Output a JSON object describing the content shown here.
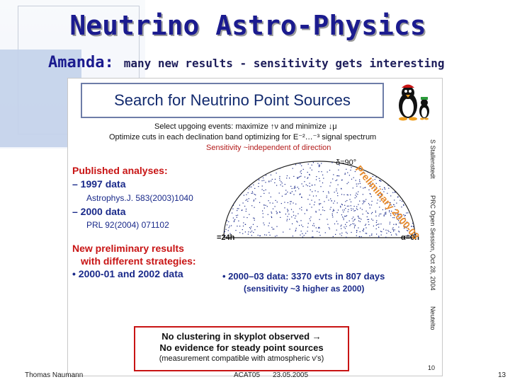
{
  "header": {
    "title": "Neutrino Astro-Physics",
    "subtitle_lead": "Amanda:",
    "subtitle_rest": "many new results - sensitivity gets interesting"
  },
  "slide": {
    "title": "Search for Neutrino Point Sources",
    "selection": [
      "Select upgoing events:  maximize ↑ν and minimize ↓μ",
      "Optimize cuts in each declination band optimizing for E⁻²…⁻³ signal spectrum"
    ],
    "sensitivity": "Sensitivity ~independent of direction",
    "published": {
      "heading": "Published analyses:",
      "item1": "– 1997 data",
      "ref1": "Astrophys.J. 583(2003)1040",
      "item2": "– 2000 data",
      "ref2": "PRL 92(2004) 071102"
    },
    "new_results": {
      "line1": "New preliminary results",
      "line2": "with different strategies:",
      "line3": "• 2000-01 and 2002 data"
    },
    "skyplot": {
      "top_label": "δ=90°",
      "left_label": "=24h",
      "right_label": "α=0h",
      "preliminary": "Preliminary 2000-03"
    },
    "data_result": "• 2000–03 data: 3370 evts in 807 days",
    "sensitivity_note": "(sensitivity ~3 higher as 2000)",
    "conclusion": {
      "line1": "No clustering in skyplot observed →",
      "line2": "No evidence for steady point sources",
      "line3": "(measurement compatible with atmospheric ν's)"
    },
    "side_labels": {
      "author": "S Stallenstedt",
      "meeting": "PRC Open Session, Oct 28, 2004",
      "source": "Neutelto"
    },
    "slide_number": "10"
  },
  "footer": {
    "author": "Thomas Naumann",
    "event": "ACAT05",
    "date": "23.05.2005",
    "page": "13"
  },
  "colors": {
    "title_blue": "#1b1b8f",
    "accent_red": "#c81414",
    "text_navy": "#1a2a8a"
  }
}
